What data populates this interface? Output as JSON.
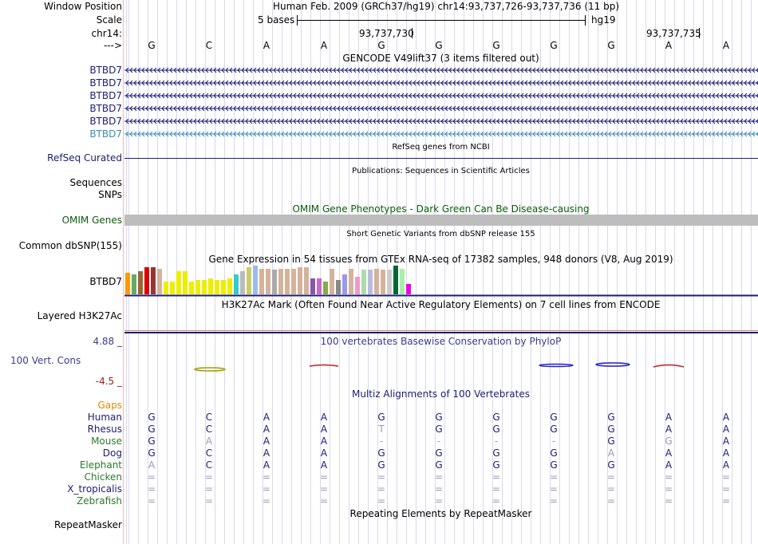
{
  "header": {
    "window_position_label": "Window Position",
    "window_position_text": "Human Feb. 2009 (GRCh37/hg19)   chr14:93,737,726-93,737,736 (11 bp)",
    "scale_label": "Scale",
    "scale_text": "5 bases",
    "scale_assembly": "hg19",
    "chrom_label": "chr14:",
    "coord_1": "93,737,730",
    "coord_2": "93,737,735",
    "strand_label": "--->"
  },
  "bases": [
    "G",
    "C",
    "A",
    "A",
    "G",
    "G",
    "G",
    "G",
    "G",
    "A",
    "A"
  ],
  "gencode": {
    "title": "GENCODE V49lift37 (3 items filtered out)",
    "labels": [
      "BTBD7",
      "BTBD7",
      "BTBD7",
      "BTBD7",
      "BTBD7",
      "BTBD7"
    ],
    "colors": [
      "#1c1c74",
      "#1c1c74",
      "#1c1c74",
      "#1c1c74",
      "#1c1c74",
      "#3c8cb4"
    ]
  },
  "refseq": {
    "title": "RefSeq genes from NCBI",
    "label": "RefSeq Curated"
  },
  "publications": {
    "title": "Publications: Sequences in Scientific Articles",
    "label": "Sequences"
  },
  "snps": {
    "label": "SNPs"
  },
  "omim": {
    "title": "OMIM Gene Phenotypes - Dark Green Can Be Disease-causing",
    "label": "OMIM Genes"
  },
  "dbsnp": {
    "title": "Short Genetic Variants from dbSNP release 155",
    "label": "Common dbSNP(155)"
  },
  "gtex": {
    "title": "Gene Expression in 54 tissues from GTEx RNA-seq of 17382 samples, 948 donors (V8, Aug 2019)",
    "label": "BTBD7",
    "bars": [
      {
        "c": "#ff9900",
        "v": 0.75
      },
      {
        "c": "#66aa66",
        "v": 0.7
      },
      {
        "c": "#996633",
        "v": 0.8
      },
      {
        "c": "#dd0000",
        "v": 0.95
      },
      {
        "c": "#993333",
        "v": 0.95
      },
      {
        "c": "#d4b39a",
        "v": 0.9
      },
      {
        "c": "#eeee00",
        "v": 0.45
      },
      {
        "c": "#eeee00",
        "v": 0.45
      },
      {
        "c": "#eeee00",
        "v": 0.8
      },
      {
        "c": "#eeee00",
        "v": 0.8
      },
      {
        "c": "#eeee00",
        "v": 0.45
      },
      {
        "c": "#eeee00",
        "v": 0.5
      },
      {
        "c": "#eeee00",
        "v": 0.5
      },
      {
        "c": "#eeee00",
        "v": 0.55
      },
      {
        "c": "#eeee00",
        "v": 0.5
      },
      {
        "c": "#eeee00",
        "v": 0.5
      },
      {
        "c": "#eeee00",
        "v": 0.55
      },
      {
        "c": "#33cccc",
        "v": 0.7
      },
      {
        "c": "#bbbbbb",
        "v": 0.8
      },
      {
        "c": "#cccc66",
        "v": 0.95
      },
      {
        "c": "#99bbee",
        "v": 1.0
      },
      {
        "c": "#d4b39a",
        "v": 0.9
      },
      {
        "c": "#d4b39a",
        "v": 0.9
      },
      {
        "c": "#aaaaaa",
        "v": 0.85
      },
      {
        "c": "#d4b39a",
        "v": 0.9
      },
      {
        "c": "#d4b39a",
        "v": 0.9
      },
      {
        "c": "#d4b39a",
        "v": 0.9
      },
      {
        "c": "#d4b39a",
        "v": 0.95
      },
      {
        "c": "#d4b39a",
        "v": 0.95
      },
      {
        "c": "#8855aa",
        "v": 0.55
      },
      {
        "c": "#cc66cc",
        "v": 0.55
      },
      {
        "c": "#88aa44",
        "v": 0.45
      },
      {
        "c": "#d4b39a",
        "v": 0.9
      },
      {
        "c": "#888888",
        "v": 0.5
      },
      {
        "c": "#9999ee",
        "v": 0.7
      },
      {
        "c": "#d4b39a",
        "v": 0.9
      },
      {
        "c": "#ee99cc",
        "v": 0.6
      },
      {
        "c": "#aaddaa",
        "v": 0.85
      },
      {
        "c": "#bbbbdd",
        "v": 0.85
      },
      {
        "c": "#d4b39a",
        "v": 0.9
      },
      {
        "c": "#d4b39a",
        "v": 0.85
      },
      {
        "c": "#cccccc",
        "v": 0.85
      },
      {
        "c": "#006633",
        "v": 1.0
      },
      {
        "c": "#aaeeaa",
        "v": 0.9
      },
      {
        "c": "#ee00ee",
        "v": 0.35
      }
    ]
  },
  "h3k27ac": {
    "title": "H3K27Ac Mark (Often Found Near Active Regulatory Elements) on 7 cell lines from ENCODE",
    "label": "Layered H3K27Ac"
  },
  "phylop": {
    "title": "100 vertebrates Basewise Conservation by PhyloP",
    "label": "100 Vert. Cons",
    "max_label": "4.88 _",
    "min_label": "-4.5 _"
  },
  "multiz": {
    "title": "Multiz Alignments of 100 Vertebrates",
    "gaps_label": "Gaps",
    "species": [
      {
        "name": "Human",
        "color": "#1c1c74",
        "bases": [
          "G",
          "C",
          "A",
          "A",
          "G",
          "G",
          "G",
          "G",
          "G",
          "A",
          "A"
        ]
      },
      {
        "name": "Rhesus",
        "color": "#1c1c74",
        "bases": [
          "G",
          "C",
          "A",
          "A",
          "T",
          "G",
          "G",
          "G",
          "G",
          "A",
          "A"
        ]
      },
      {
        "name": "Mouse",
        "color": "#2a7a2a",
        "bases": [
          "G",
          "A",
          "A",
          "A",
          "-",
          "-",
          "-",
          "-",
          "G",
          "G",
          "A"
        ]
      },
      {
        "name": "Dog",
        "color": "#1c1c74",
        "bases": [
          "G",
          "C",
          "A",
          "A",
          "G",
          "G",
          "G",
          "G",
          "A",
          "A",
          "A"
        ]
      },
      {
        "name": "Elephant",
        "color": "#2a7a2a",
        "bases": [
          "A",
          "C",
          "A",
          "A",
          "G",
          "G",
          "G",
          "G",
          "G",
          "A",
          "A"
        ]
      },
      {
        "name": "Chicken",
        "color": "#2a7a2a",
        "bases": [
          "=",
          "=",
          "=",
          "=",
          "=",
          "=",
          "=",
          "=",
          "=",
          "=",
          "="
        ]
      },
      {
        "name": "X_tropicalis",
        "color": "#1c1c74",
        "bases": [
          "=",
          "=",
          "=",
          "=",
          "=",
          "=",
          "=",
          "=",
          "=",
          "=",
          "="
        ]
      },
      {
        "name": "Zebrafish",
        "color": "#2a7a2a",
        "bases": [
          "=",
          "=",
          "=",
          "=",
          "=",
          "=",
          "=",
          "=",
          "=",
          "=",
          "="
        ]
      }
    ]
  },
  "repeatmasker": {
    "title": "Repeating Elements by RepeatMasker",
    "label": "RepeatMasker"
  }
}
